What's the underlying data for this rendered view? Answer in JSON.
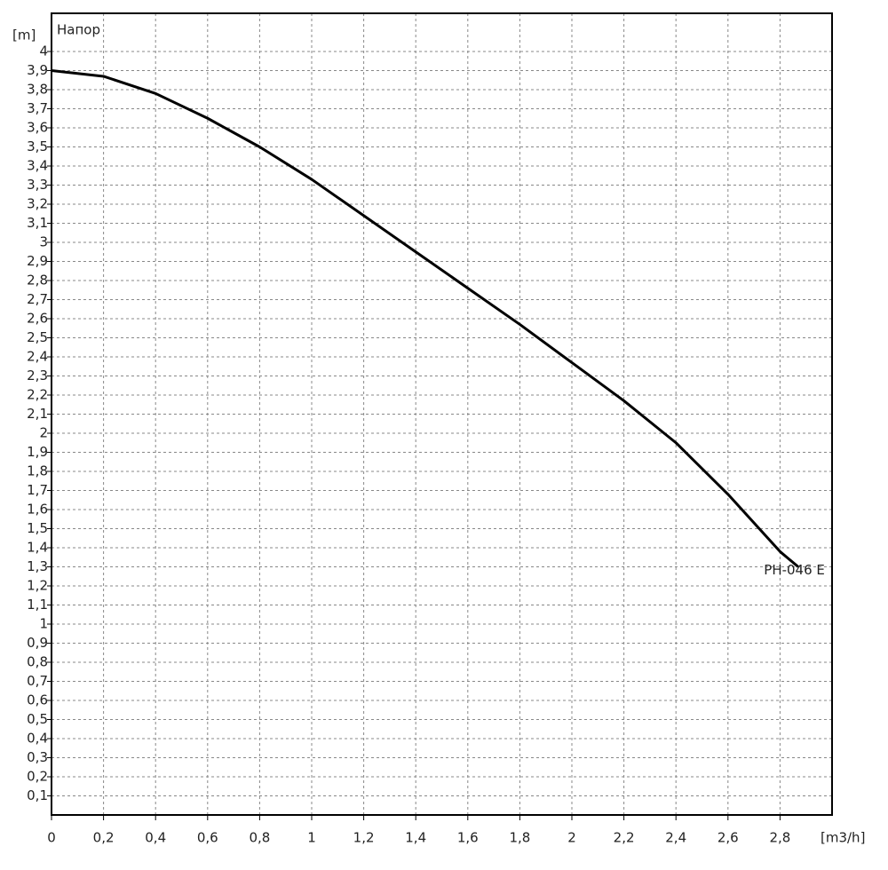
{
  "chart_data": {
    "type": "line",
    "title": "Напор",
    "y_label": "[m]",
    "x_label": "[m3/h]",
    "x": [
      0,
      0.2,
      0.4,
      0.6,
      0.8,
      1.0,
      1.2,
      1.4,
      1.6,
      1.8,
      2.0,
      2.2,
      2.4,
      2.6,
      2.8,
      2.87
    ],
    "series": [
      {
        "name": "PH-046 E",
        "color": "#000000",
        "values": [
          3.9,
          3.87,
          3.78,
          3.65,
          3.5,
          3.33,
          3.14,
          2.95,
          2.76,
          2.57,
          2.37,
          2.17,
          1.95,
          1.68,
          1.38,
          1.3
        ]
      }
    ],
    "xlim": [
      0,
      3
    ],
    "ylim": [
      0,
      4.2
    ],
    "grid": true,
    "xticks": [
      0,
      {
        "value": 0.2,
        "label": "0,2"
      },
      {
        "value": 0.4,
        "label": "0,4"
      },
      {
        "value": 0.6,
        "label": "0,6"
      },
      {
        "value": 0.8,
        "label": "0,8"
      },
      1,
      {
        "value": 1.2,
        "label": "1,2"
      },
      {
        "value": 1.4,
        "label": "1,4"
      },
      {
        "value": 1.6,
        "label": "1,6"
      },
      {
        "value": 1.8,
        "label": "1,8"
      },
      2,
      {
        "value": 2.2,
        "label": "2,2"
      },
      {
        "value": 2.4,
        "label": "2,4"
      },
      {
        "value": 2.6,
        "label": "2,6"
      },
      {
        "value": 2.8,
        "label": "2,8"
      }
    ],
    "yticks": [
      {
        "value": 0.1,
        "label": "0,1"
      },
      {
        "value": 0.2,
        "label": "0,2"
      },
      {
        "value": 0.3,
        "label": "0,3"
      },
      {
        "value": 0.4,
        "label": "0,4"
      },
      {
        "value": 0.5,
        "label": "0,5"
      },
      {
        "value": 0.6,
        "label": "0,6"
      },
      {
        "value": 0.7,
        "label": "0,7"
      },
      {
        "value": 0.8,
        "label": "0,8"
      },
      {
        "value": 0.9,
        "label": "0,9"
      },
      1,
      {
        "value": 1.1,
        "label": "1,1"
      },
      {
        "value": 1.2,
        "label": "1,2"
      },
      {
        "value": 1.3,
        "label": "1,3"
      },
      {
        "value": 1.4,
        "label": "1,4"
      },
      {
        "value": 1.5,
        "label": "1,5"
      },
      {
        "value": 1.6,
        "label": "1,6"
      },
      {
        "value": 1.7,
        "label": "1,7"
      },
      {
        "value": 1.8,
        "label": "1,8"
      },
      {
        "value": 1.9,
        "label": "1,9"
      },
      2,
      {
        "value": 2.1,
        "label": "2,1"
      },
      {
        "value": 2.2,
        "label": "2,2"
      },
      {
        "value": 2.3,
        "label": "2,3"
      },
      {
        "value": 2.4,
        "label": "2,4"
      },
      {
        "value": 2.5,
        "label": "2,5"
      },
      {
        "value": 2.6,
        "label": "2,6"
      },
      {
        "value": 2.7,
        "label": "2,7"
      },
      {
        "value": 2.8,
        "label": "2,8"
      },
      {
        "value": 2.9,
        "label": "2,9"
      },
      3,
      {
        "value": 3.1,
        "label": "3,1"
      },
      {
        "value": 3.2,
        "label": "3,2"
      },
      {
        "value": 3.3,
        "label": "3,3"
      },
      {
        "value": 3.4,
        "label": "3,4"
      },
      {
        "value": 3.5,
        "label": "3,5"
      },
      {
        "value": 3.6,
        "label": "3,6"
      },
      {
        "value": 3.7,
        "label": "3,7"
      },
      {
        "value": 3.8,
        "label": "3,8"
      },
      {
        "value": 3.9,
        "label": "3,9"
      },
      4
    ]
  }
}
